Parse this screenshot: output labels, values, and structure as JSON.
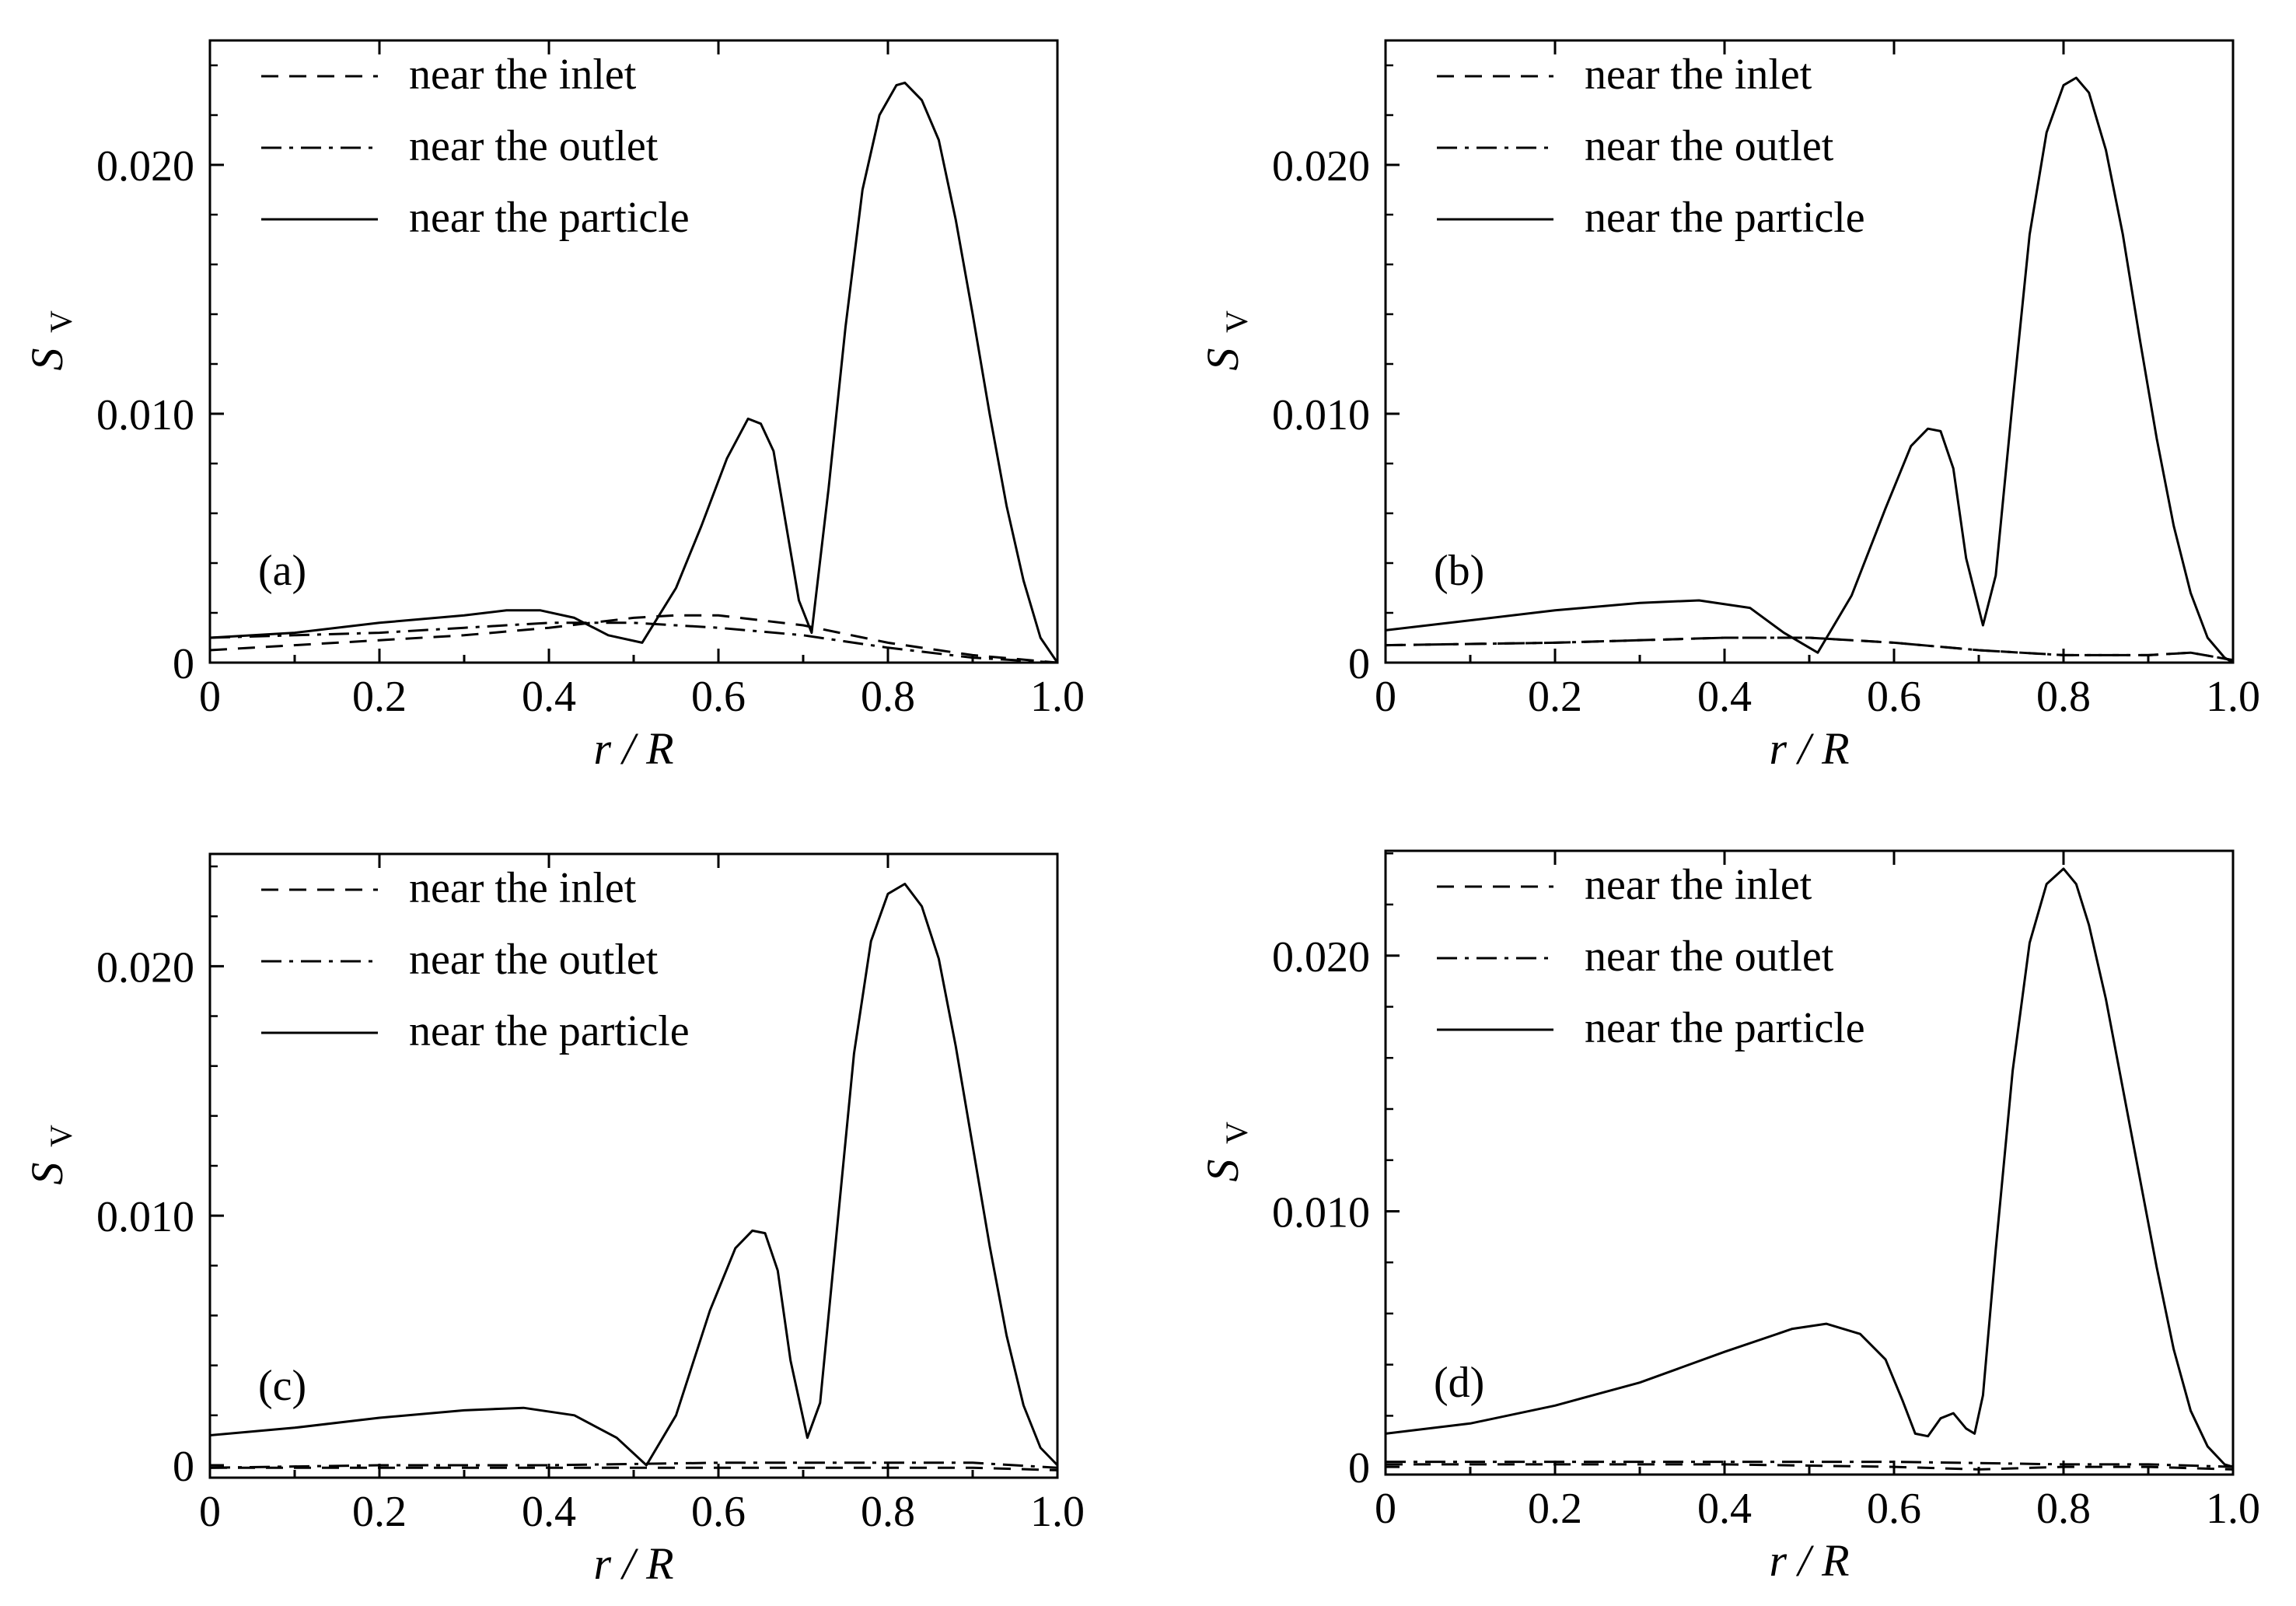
{
  "chart_data": [
    {
      "type": "line",
      "panel_label": "(a)",
      "xlabel": "r / R",
      "ylabel": "S",
      "ylabel_sub": "V",
      "xlim": [
        0,
        1.0
      ],
      "ylim": [
        0,
        0.025
      ],
      "xticks": [
        "0",
        "0.2",
        "0.4",
        "0.6",
        "0.8",
        "1.0"
      ],
      "yticks": [
        "0",
        "0.010",
        "0.020"
      ],
      "legend": {
        "position": "top-left"
      },
      "series": [
        {
          "name": "near the inlet",
          "style": "dashed",
          "x": [
            0,
            0.1,
            0.2,
            0.3,
            0.4,
            0.5,
            0.55,
            0.6,
            0.7,
            0.8,
            0.9,
            1.0
          ],
          "y": [
            0.0005,
            0.0007,
            0.0009,
            0.0011,
            0.0014,
            0.0018,
            0.0019,
            0.0019,
            0.0015,
            0.0008,
            0.0003,
            0.0
          ]
        },
        {
          "name": "near the outlet",
          "style": "dashdot",
          "x": [
            0,
            0.1,
            0.2,
            0.3,
            0.4,
            0.5,
            0.6,
            0.7,
            0.8,
            0.9,
            1.0
          ],
          "y": [
            0.001,
            0.0011,
            0.0012,
            0.0014,
            0.0016,
            0.0016,
            0.0014,
            0.0011,
            0.0006,
            0.0002,
            0.0
          ]
        },
        {
          "name": "near the particle",
          "style": "solid",
          "x": [
            0,
            0.1,
            0.2,
            0.3,
            0.35,
            0.39,
            0.43,
            0.47,
            0.51,
            0.55,
            0.58,
            0.61,
            0.635,
            0.65,
            0.665,
            0.68,
            0.695,
            0.71,
            0.73,
            0.75,
            0.77,
            0.79,
            0.81,
            0.82,
            0.84,
            0.86,
            0.88,
            0.9,
            0.92,
            0.94,
            0.96,
            0.98,
            1.0
          ],
          "y": [
            0.001,
            0.0012,
            0.0016,
            0.0019,
            0.0021,
            0.0021,
            0.0018,
            0.0011,
            0.0008,
            0.003,
            0.0055,
            0.0082,
            0.0098,
            0.0096,
            0.0085,
            0.0055,
            0.0025,
            0.0012,
            0.007,
            0.0135,
            0.019,
            0.022,
            0.0232,
            0.0233,
            0.0226,
            0.021,
            0.0178,
            0.014,
            0.01,
            0.0063,
            0.0033,
            0.001,
            0.0
          ]
        }
      ]
    },
    {
      "type": "line",
      "panel_label": "(b)",
      "xlabel": "r / R",
      "ylabel": "S",
      "ylabel_sub": "V",
      "xlim": [
        0,
        1.0
      ],
      "ylim": [
        0,
        0.025
      ],
      "xticks": [
        "0",
        "0.2",
        "0.4",
        "0.6",
        "0.8",
        "1.0"
      ],
      "yticks": [
        "0",
        "0.010",
        "0.020"
      ],
      "legend": {
        "position": "top-left"
      },
      "series": [
        {
          "name": "near the inlet",
          "style": "dashed",
          "x": [
            0,
            0.2,
            0.4,
            0.5,
            0.6,
            0.7,
            0.8,
            0.9,
            0.95,
            1.0
          ],
          "y": [
            0.0007,
            0.0008,
            0.001,
            0.001,
            0.0008,
            0.0005,
            0.0003,
            0.0003,
            0.0004,
            0.0001
          ]
        },
        {
          "name": "near the outlet",
          "style": "dashdot",
          "x": [
            0,
            0.2,
            0.4,
            0.5,
            0.6,
            0.7,
            0.8,
            0.9,
            0.95,
            1.0
          ],
          "y": [
            0.0007,
            0.0008,
            0.001,
            0.001,
            0.0008,
            0.0005,
            0.0003,
            0.0003,
            0.0004,
            0.0001
          ]
        },
        {
          "name": "near the particle",
          "style": "solid",
          "x": [
            0,
            0.1,
            0.2,
            0.3,
            0.37,
            0.43,
            0.47,
            0.51,
            0.55,
            0.59,
            0.62,
            0.64,
            0.655,
            0.67,
            0.685,
            0.705,
            0.72,
            0.74,
            0.76,
            0.78,
            0.8,
            0.815,
            0.83,
            0.85,
            0.87,
            0.89,
            0.91,
            0.93,
            0.95,
            0.97,
            0.99,
            1.0
          ],
          "y": [
            0.0013,
            0.0017,
            0.0021,
            0.0024,
            0.0025,
            0.0022,
            0.0012,
            0.0004,
            0.0027,
            0.0062,
            0.0087,
            0.0094,
            0.0093,
            0.0078,
            0.0042,
            0.0015,
            0.0035,
            0.0105,
            0.0172,
            0.0213,
            0.0232,
            0.0235,
            0.0229,
            0.0206,
            0.0172,
            0.013,
            0.009,
            0.0055,
            0.0028,
            0.001,
            0.0002,
            0.0
          ]
        }
      ]
    },
    {
      "type": "line",
      "panel_label": "(c)",
      "xlabel": "r / R",
      "ylabel": "S",
      "ylabel_sub": "V",
      "xlim": [
        0,
        1.0
      ],
      "ylim": [
        -0.0005,
        0.0245
      ],
      "xticks": [
        "0",
        "0.2",
        "0.4",
        "0.6",
        "0.8",
        "1.0"
      ],
      "yticks": [
        "0",
        "0.010",
        "0.020"
      ],
      "legend": {
        "position": "top-left"
      },
      "series": [
        {
          "name": "near the inlet",
          "style": "dashed",
          "x": [
            0,
            0.2,
            0.4,
            0.6,
            0.8,
            0.9,
            1.0
          ],
          "y": [
            -0.0001,
            -0.0001,
            -0.0001,
            -0.0001,
            -0.0001,
            -0.0001,
            -0.0002
          ]
        },
        {
          "name": "near the outlet",
          "style": "dashdot",
          "x": [
            0,
            0.2,
            0.4,
            0.6,
            0.8,
            0.9,
            1.0
          ],
          "y": [
            -0.0001,
            0.0,
            0.0,
            0.0001,
            0.0001,
            0.0001,
            -0.0001
          ]
        },
        {
          "name": "near the particle",
          "style": "solid",
          "x": [
            0,
            0.1,
            0.2,
            0.3,
            0.37,
            0.43,
            0.48,
            0.515,
            0.55,
            0.59,
            0.62,
            0.64,
            0.655,
            0.67,
            0.685,
            0.705,
            0.72,
            0.74,
            0.76,
            0.78,
            0.8,
            0.82,
            0.84,
            0.86,
            0.88,
            0.9,
            0.92,
            0.94,
            0.96,
            0.98,
            1.0
          ],
          "y": [
            0.0012,
            0.0015,
            0.0019,
            0.0022,
            0.0023,
            0.002,
            0.0011,
            0.0,
            0.002,
            0.0062,
            0.0087,
            0.0094,
            0.0093,
            0.0078,
            0.0042,
            0.0011,
            0.0025,
            0.0095,
            0.0165,
            0.021,
            0.0229,
            0.0233,
            0.0224,
            0.0203,
            0.0168,
            0.0128,
            0.0088,
            0.0052,
            0.0024,
            0.0007,
            0.0
          ]
        }
      ]
    },
    {
      "type": "line",
      "panel_label": "(d)",
      "xlabel": "r / R",
      "ylabel": "S",
      "ylabel_sub": "V",
      "xlim": [
        0,
        1.0
      ],
      "ylim": [
        -0.0003,
        0.0241
      ],
      "xticks": [
        "0",
        "0.2",
        "0.4",
        "0.6",
        "0.8",
        "1.0"
      ],
      "yticks": [
        "0",
        "0.010",
        "0.020"
      ],
      "legend": {
        "position": "top-left"
      },
      "series": [
        {
          "name": "near the inlet",
          "style": "dashed",
          "x": [
            0,
            0.2,
            0.4,
            0.6,
            0.7,
            0.8,
            0.9,
            1.0
          ],
          "y": [
            0.0001,
            0.0001,
            0.0001,
            0.0,
            -0.0001,
            0.0,
            0.0,
            -0.0001
          ]
        },
        {
          "name": "near the outlet",
          "style": "dashdot",
          "x": [
            0,
            0.2,
            0.4,
            0.6,
            0.8,
            0.9,
            1.0
          ],
          "y": [
            0.0002,
            0.0002,
            0.0002,
            0.0002,
            0.0001,
            0.0001,
            0.0
          ]
        },
        {
          "name": "near the particle",
          "style": "solid",
          "x": [
            0,
            0.1,
            0.2,
            0.3,
            0.4,
            0.48,
            0.52,
            0.56,
            0.59,
            0.61,
            0.625,
            0.64,
            0.655,
            0.67,
            0.685,
            0.695,
            0.705,
            0.72,
            0.74,
            0.76,
            0.78,
            0.8,
            0.815,
            0.83,
            0.85,
            0.87,
            0.89,
            0.91,
            0.93,
            0.95,
            0.97,
            0.99,
            1.0
          ],
          "y": [
            0.0013,
            0.0017,
            0.0024,
            0.0033,
            0.0045,
            0.0054,
            0.0056,
            0.0052,
            0.0042,
            0.0026,
            0.0013,
            0.0012,
            0.0019,
            0.0021,
            0.0015,
            0.0013,
            0.0028,
            0.0085,
            0.0155,
            0.0205,
            0.0228,
            0.0234,
            0.0228,
            0.0212,
            0.0183,
            0.0148,
            0.0113,
            0.0078,
            0.0046,
            0.0022,
            0.0008,
            0.0001,
            0.0
          ]
        }
      ]
    }
  ]
}
